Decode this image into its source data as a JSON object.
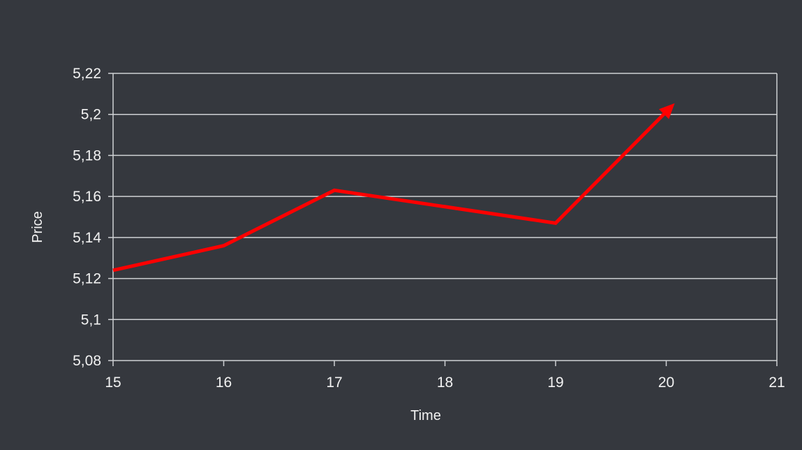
{
  "chart_data": {
    "type": "line",
    "title": "",
    "xlabel": "Time",
    "ylabel": "Price",
    "xlim": [
      15,
      21
    ],
    "ylim": [
      5.08,
      5.22
    ],
    "x_ticks": [
      15,
      16,
      17,
      18,
      19,
      20,
      21
    ],
    "x_tick_labels": [
      "15",
      "16",
      "17",
      "18",
      "19",
      "20",
      "21"
    ],
    "y_ticks": [
      5.08,
      5.1,
      5.12,
      5.14,
      5.16,
      5.18,
      5.2,
      5.22
    ],
    "y_tick_labels": [
      "5,08",
      "5,1",
      "5,12",
      "5,14",
      "5,16",
      "5,18",
      "5,2",
      "5,22"
    ],
    "grid": true,
    "legend": "none",
    "series": [
      {
        "color": "#ff0000",
        "arrow_end": true,
        "points": [
          {
            "x": 15,
            "y": 5.124
          },
          {
            "x": 16,
            "y": 5.136
          },
          {
            "x": 17,
            "y": 5.163
          },
          {
            "x": 19,
            "y": 5.147
          },
          {
            "x": 20.05,
            "y": 5.204
          }
        ]
      }
    ]
  },
  "colors": {
    "background": "#35383e",
    "grid": "#cfd1d4",
    "text": "#f2f2f2"
  }
}
